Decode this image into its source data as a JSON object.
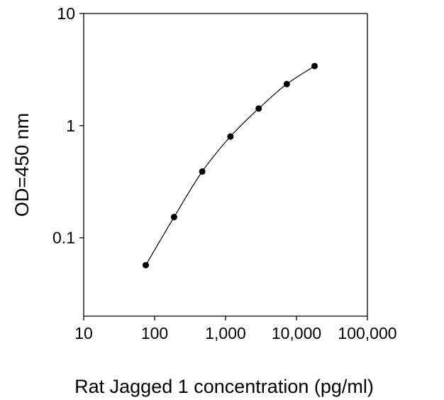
{
  "chart_data": {
    "type": "line",
    "title": "",
    "xlabel": "Rat Jagged 1 concentration (pg/ml)",
    "ylabel": "OD=450 nm",
    "x_scale": "log",
    "y_scale": "log",
    "xlim": [
      10,
      100000
    ],
    "ylim": [
      0.02,
      10
    ],
    "x_ticks": [
      10,
      100,
      1000,
      10000,
      100000
    ],
    "x_tick_labels": [
      "10",
      "100",
      "1,000",
      "10,000",
      "100,000"
    ],
    "y_ticks": [
      0.1,
      1,
      10
    ],
    "y_tick_labels": [
      "0.1",
      "1",
      "10"
    ],
    "grid": false,
    "legend": "none",
    "series": [
      {
        "x": [
          75,
          188,
          469,
          1172,
          2930,
          7300,
          18000
        ],
        "y": [
          0.057,
          0.153,
          0.39,
          0.8,
          1.42,
          2.35,
          3.4
        ],
        "marker": "filled-circle",
        "color": "#000000"
      }
    ]
  }
}
